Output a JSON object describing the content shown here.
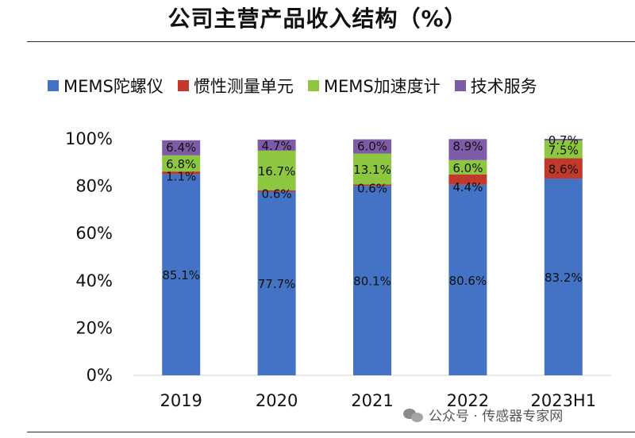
{
  "chart_data": {
    "type": "bar",
    "stacked": true,
    "title": "公司主营产品收入结构（%）",
    "categories": [
      "2019",
      "2020",
      "2021",
      "2022",
      "2023H1"
    ],
    "series": [
      {
        "name": "MEMS陀螺仪",
        "color": "#4472C4",
        "values": [
          85.1,
          77.7,
          80.1,
          80.6,
          83.2
        ],
        "labels": [
          "85.1%",
          "77.7%",
          "80.1%",
          "80.6%",
          "83.2%"
        ]
      },
      {
        "name": "惯性测量单元",
        "color": "#C0392B",
        "values": [
          1.1,
          0.6,
          0.6,
          4.4,
          8.6
        ],
        "labels": [
          "1.1%",
          "0.6%",
          "0.6%",
          "4.4%",
          "8.6%"
        ]
      },
      {
        "name": "MEMS加速度计",
        "color": "#8DC63F",
        "values": [
          6.8,
          16.7,
          13.1,
          6.0,
          7.5
        ],
        "labels": [
          "6.8%",
          "16.7%",
          "13.1%",
          "6.0%",
          "7.5%"
        ]
      },
      {
        "name": "技术服务",
        "color": "#7E5BA6",
        "values": [
          6.4,
          4.7,
          6.0,
          8.9,
          0.7
        ],
        "labels": [
          "6.4%",
          "4.7%",
          "6.0%",
          "8.9%",
          "0.7%"
        ]
      }
    ],
    "ylim": [
      0,
      100
    ],
    "yticks": [
      "0%",
      "20%",
      "40%",
      "60%",
      "80%",
      "100%"
    ],
    "legend_position": "top",
    "grid": false
  },
  "watermark": {
    "text": "公众号 · 传感器专家网",
    "icon": "wechat-icon"
  }
}
